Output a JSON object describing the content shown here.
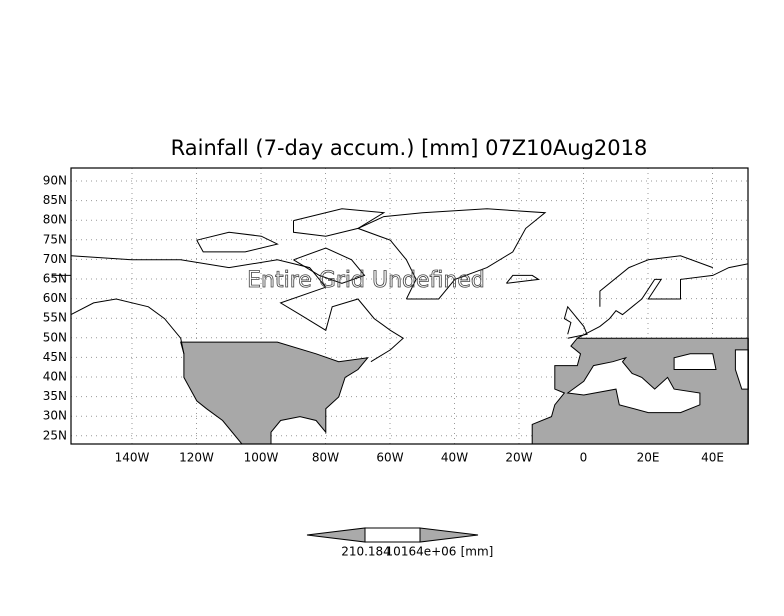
{
  "title": "Rainfall (7-day accum.) [mm] 07Z10Aug2018",
  "annotation": "Entire Grid Undefined",
  "lat_labels": [
    "90N",
    "85N",
    "80N",
    "75N",
    "70N",
    "65N",
    "60N",
    "55N",
    "50N",
    "45N",
    "40N",
    "35N",
    "30N",
    "25N"
  ],
  "lon_labels": [
    "140W",
    "120W",
    "100W",
    "80W",
    "60W",
    "40W",
    "20W",
    "0",
    "20E",
    "40E"
  ],
  "colorbar_labels": [
    "210.184",
    "10164e+06",
    "[mm]"
  ]
}
